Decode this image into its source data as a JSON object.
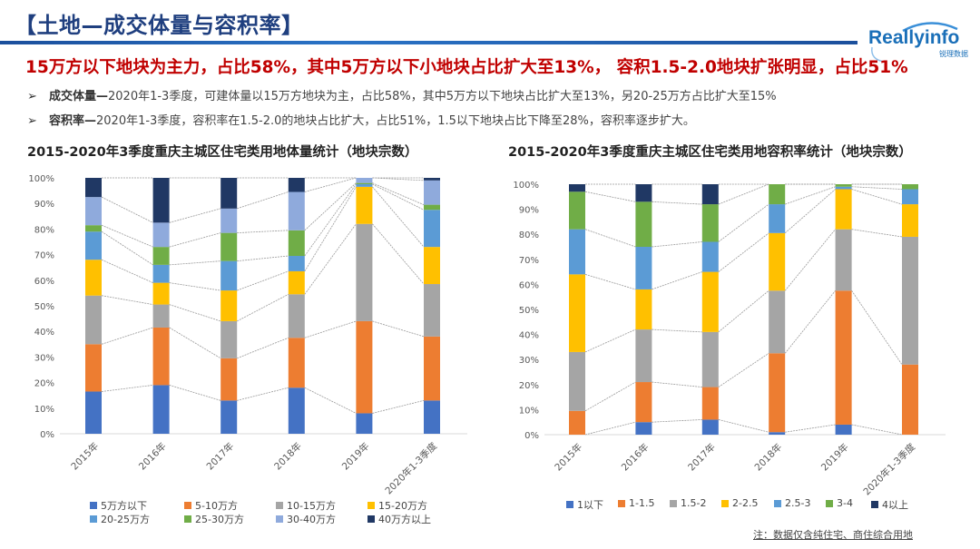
{
  "header": {
    "title": "【土地—成交体量与容积率】",
    "logo_text": "Reallyinfo",
    "logo_sub": "锐理数据",
    "headline": "15万方以下地块为主力，占比58%，其中5万方以下小地块占比扩大至13%， 容积1.5-2.0地块扩张明显，占比51%"
  },
  "bullets": [
    {
      "label": "成交体量—",
      "text": "2020年1-3季度，可建体量以15万方地块为主，占比58%，其中5万方以下地块占比扩大至13%，另20-25万方占比扩大至15%"
    },
    {
      "label": "容积率—",
      "text": "2020年1-3季度，容积率在1.5-2.0的地块占比扩大，占比51%，1.5以下地块占比下降至28%，容积率逐步扩大。"
    }
  ],
  "note": "注：数据仅含纯住宅、商住综合用地",
  "chart_data": [
    {
      "type": "bar",
      "stacked": "percent",
      "title": "2015-2020年3季度重庆主城区住宅类用地体量统计（地块宗数）",
      "categories": [
        "2015年",
        "2016年",
        "2017年",
        "2018年",
        "2019年",
        "2020年1-3季度"
      ],
      "yticks": [
        "0%",
        "10%",
        "20%",
        "30%",
        "40%",
        "50%",
        "60%",
        "70%",
        "80%",
        "90%",
        "100%"
      ],
      "ylim": [
        0,
        100
      ],
      "legend_position": "bottom",
      "series": [
        {
          "name": "5万方以下",
          "color": "#4472c4",
          "values": [
            16.5,
            19,
            13,
            18,
            8,
            13
          ]
        },
        {
          "name": "5-10万方",
          "color": "#ed7d31",
          "values": [
            18.5,
            22.5,
            16.5,
            19.5,
            36,
            25
          ]
        },
        {
          "name": "10-15万方",
          "color": "#a5a5a5",
          "values": [
            19,
            9,
            14.5,
            17,
            38,
            20.5
          ]
        },
        {
          "name": "15-20万方",
          "color": "#ffc000",
          "values": [
            14,
            8.5,
            12,
            9,
            14.5,
            14.5
          ]
        },
        {
          "name": "20-25万方",
          "color": "#5b9bd5",
          "values": [
            11,
            7,
            11.5,
            6,
            1,
            14.5
          ]
        },
        {
          "name": "25-30万方",
          "color": "#70ad47",
          "values": [
            2.5,
            7,
            11,
            10,
            0.5,
            2
          ]
        },
        {
          "name": "30-40万方",
          "color": "#8faadc",
          "values": [
            11,
            9.5,
            9.5,
            15,
            2,
            9.5
          ]
        },
        {
          "name": "40万方以上",
          "color": "#203864",
          "values": [
            7.5,
            17.5,
            12,
            5.5,
            0,
            1
          ]
        }
      ]
    },
    {
      "type": "bar",
      "stacked": "percent",
      "title": "2015-2020年3季度重庆主城区住宅类用地容积率统计（地块宗数）",
      "categories": [
        "2015年",
        "2016年",
        "2017年",
        "2018年",
        "2019年",
        "2020年1-3季度"
      ],
      "yticks": [
        "0%",
        "10%",
        "20%",
        "30%",
        "40%",
        "50%",
        "60%",
        "70%",
        "80%",
        "90%",
        "100%"
      ],
      "ylim": [
        0,
        100
      ],
      "legend_position": "bottom",
      "series": [
        {
          "name": "1以下",
          "color": "#4472c4",
          "values": [
            0,
            5,
            6,
            1,
            4,
            0
          ]
        },
        {
          "name": "1-1.5",
          "color": "#ed7d31",
          "values": [
            9.5,
            16,
            13,
            31.5,
            53.5,
            28
          ]
        },
        {
          "name": "1.5-2",
          "color": "#a5a5a5",
          "values": [
            23.5,
            21,
            22,
            25,
            24.5,
            51
          ]
        },
        {
          "name": "2-2.5",
          "color": "#ffc000",
          "values": [
            31,
            16,
            24,
            23,
            16,
            13
          ]
        },
        {
          "name": "2.5-3",
          "color": "#5b9bd5",
          "values": [
            18,
            17,
            12,
            11.5,
            1,
            6
          ]
        },
        {
          "name": "3-4",
          "color": "#70ad47",
          "values": [
            15,
            18,
            15,
            8,
            1,
            2
          ]
        },
        {
          "name": "4以上",
          "color": "#203864",
          "values": [
            3,
            7,
            8,
            0,
            0,
            0
          ]
        }
      ]
    }
  ]
}
